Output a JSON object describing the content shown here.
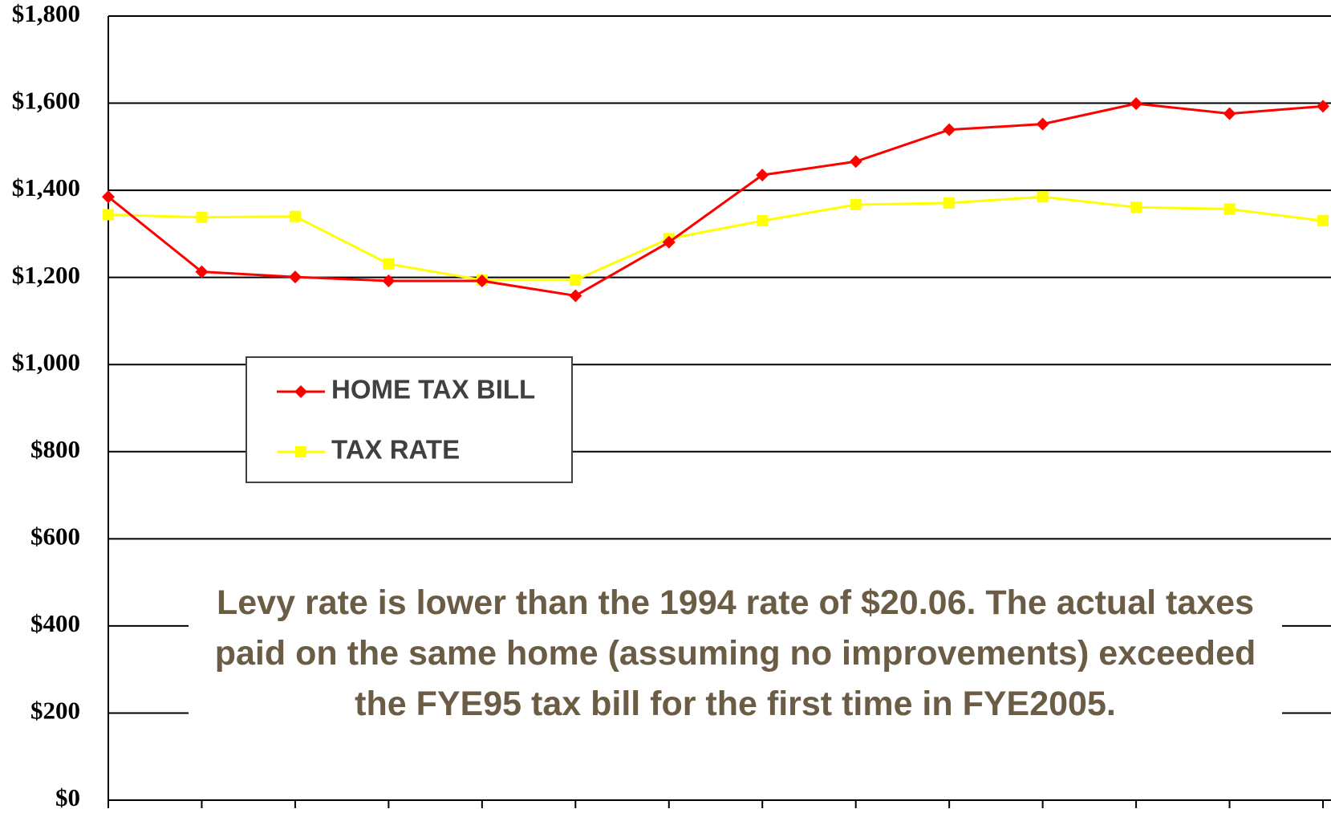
{
  "chart_data": {
    "type": "line",
    "annotation": "Levy rate is lower than the 1994 rate of $20.06. The actual taxes paid on the same home (assuming no improvements) exceeded the FYE95 tax bill for the first time in FYE2005.",
    "categories": [
      null,
      null,
      null,
      null,
      null,
      null,
      null,
      null,
      null,
      null,
      null,
      null,
      null,
      null
    ],
    "series": [
      {
        "name": "HOME TAX BILL",
        "color": "#ff0000",
        "marker": "diamond",
        "values": [
          1385,
          1213,
          1201,
          1192,
          1192,
          1158,
          1281,
          1435,
          1466,
          1539,
          1552,
          1599,
          1576,
          1593
        ]
      },
      {
        "name": "TAX RATE",
        "color": "#ffff00",
        "marker": "square",
        "values": [
          1344,
          1338,
          1340,
          1231,
          1194,
          1194,
          1289,
          1330,
          1367,
          1371,
          1385,
          1361,
          1357,
          1330
        ]
      }
    ],
    "ylim": [
      0,
      1800
    ],
    "yticks": [
      {
        "value": 0,
        "label": "$0"
      },
      {
        "value": 200,
        "label": "$200"
      },
      {
        "value": 400,
        "label": "$400"
      },
      {
        "value": 600,
        "label": "$600"
      },
      {
        "value": 800,
        "label": "$800"
      },
      {
        "value": 1000,
        "label": "$1,000"
      },
      {
        "value": 1200,
        "label": "$1,200"
      },
      {
        "value": 1400,
        "label": "$1,400"
      },
      {
        "value": 1600,
        "label": "$1,600"
      },
      {
        "value": 1800,
        "label": "$1,800"
      }
    ],
    "grid": true
  }
}
